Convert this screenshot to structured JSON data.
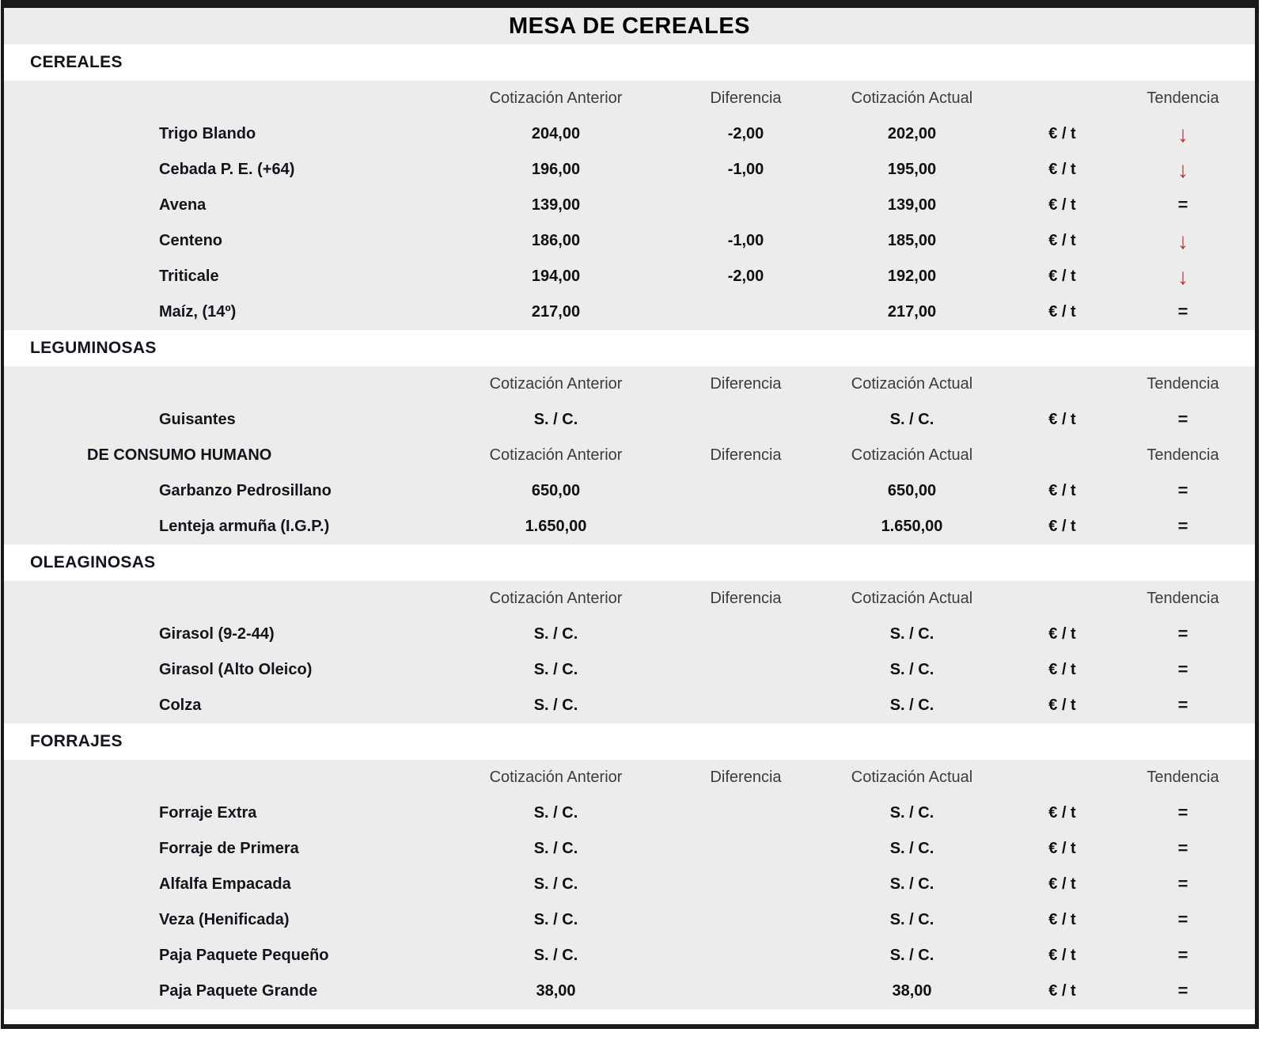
{
  "title": "MESA DE CEREALES",
  "unit": "€ / t",
  "columns": {
    "anterior": "Cotización Anterior",
    "diferencia": "Diferencia",
    "actual": "Cotización Actual",
    "tendencia": "Tendencia"
  },
  "icons": {
    "down": "↓",
    "equal": "="
  },
  "colors": {
    "band_gray": "#ececec",
    "arrow_down_red": "#b03232",
    "equal_dark": "#1c1c1c",
    "border_black": "#191919"
  },
  "sections": [
    {
      "label": "CEREALES",
      "rows": [
        {
          "type": "header",
          "label": ""
        },
        {
          "type": "data",
          "label": "Trigo Blando",
          "anterior": "204,00",
          "diferencia": "-2,00",
          "actual": "202,00",
          "tendencia": "down"
        },
        {
          "type": "data",
          "label": "Cebada P. E. (+64)",
          "anterior": "196,00",
          "diferencia": "-1,00",
          "actual": "195,00",
          "tendencia": "down"
        },
        {
          "type": "data",
          "label": "Avena",
          "anterior": "139,00",
          "diferencia": "",
          "actual": "139,00",
          "tendencia": "equal"
        },
        {
          "type": "data",
          "label": "Centeno",
          "anterior": "186,00",
          "diferencia": "-1,00",
          "actual": "185,00",
          "tendencia": "down"
        },
        {
          "type": "data",
          "label": "Triticale",
          "anterior": "194,00",
          "diferencia": "-2,00",
          "actual": "192,00",
          "tendencia": "down"
        },
        {
          "type": "data",
          "label": "Maíz, (14º)",
          "anterior": "217,00",
          "diferencia": "",
          "actual": "217,00",
          "tendencia": "equal"
        }
      ]
    },
    {
      "label": "LEGUMINOSAS",
      "rows": [
        {
          "type": "header",
          "label": ""
        },
        {
          "type": "data",
          "label": "Guisantes",
          "anterior": "S. / C.",
          "diferencia": "",
          "actual": "S. / C.",
          "tendencia": "equal"
        },
        {
          "type": "header",
          "label": "DE CONSUMO HUMANO"
        },
        {
          "type": "data",
          "label": "Garbanzo Pedrosillano",
          "anterior": "650,00",
          "diferencia": "",
          "actual": "650,00",
          "tendencia": "equal"
        },
        {
          "type": "data",
          "label": "Lenteja armuña (I.G.P.)",
          "anterior": "1.650,00",
          "diferencia": "",
          "actual": "1.650,00",
          "tendencia": "equal"
        }
      ]
    },
    {
      "label": "OLEAGINOSAS",
      "rows": [
        {
          "type": "header",
          "label": ""
        },
        {
          "type": "data",
          "label": "Girasol (9-2-44)",
          "anterior": "S. / C.",
          "diferencia": "",
          "actual": "S. / C.",
          "tendencia": "equal"
        },
        {
          "type": "data",
          "label": "Girasol (Alto Oleico)",
          "anterior": "S. / C.",
          "diferencia": "",
          "actual": "S. / C.",
          "tendencia": "equal"
        },
        {
          "type": "data",
          "label": "Colza",
          "anterior": "S. / C.",
          "diferencia": "",
          "actual": "S. / C.",
          "tendencia": "equal"
        }
      ]
    },
    {
      "label": "FORRAJES",
      "rows": [
        {
          "type": "header",
          "label": ""
        },
        {
          "type": "data",
          "label": "Forraje Extra",
          "anterior": "S. / C.",
          "diferencia": "",
          "actual": "S. / C.",
          "tendencia": "equal"
        },
        {
          "type": "data",
          "label": "Forraje de Primera",
          "anterior": "S. / C.",
          "diferencia": "",
          "actual": "S. / C.",
          "tendencia": "equal"
        },
        {
          "type": "data",
          "label": "Alfalfa Empacada",
          "anterior": "S. / C.",
          "diferencia": "",
          "actual": "S. / C.",
          "tendencia": "equal"
        },
        {
          "type": "data",
          "label": "Veza (Henificada)",
          "anterior": "S. / C.",
          "diferencia": "",
          "actual": "S. / C.",
          "tendencia": "equal"
        },
        {
          "type": "data",
          "label": "Paja Paquete Pequeño",
          "anterior": "S. / C.",
          "diferencia": "",
          "actual": "S. / C.",
          "tendencia": "equal"
        },
        {
          "type": "data",
          "label": "Paja Paquete Grande",
          "anterior": "38,00",
          "diferencia": "",
          "actual": "38,00",
          "tendencia": "equal"
        }
      ]
    }
  ]
}
